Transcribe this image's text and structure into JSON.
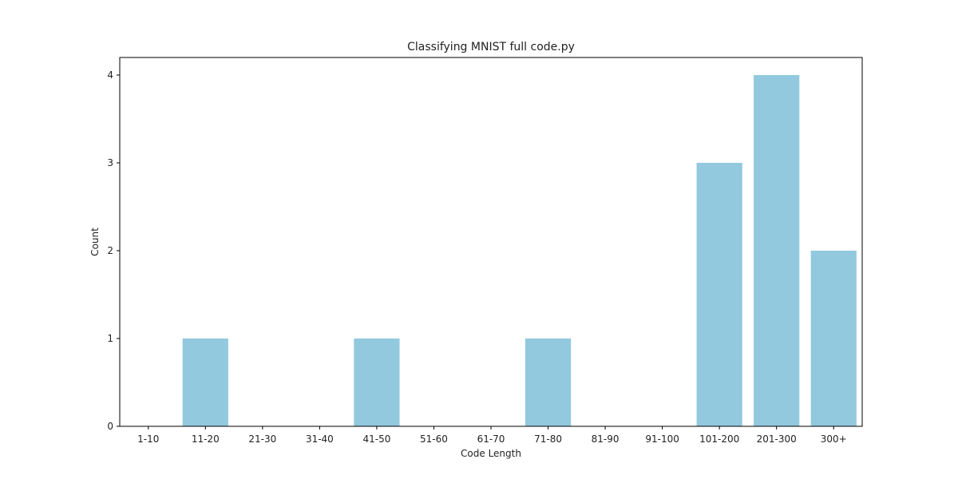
{
  "chart_data": {
    "type": "bar",
    "title": "Classifying MNIST full code.py",
    "xlabel": "Code Length",
    "ylabel": "Count",
    "categories": [
      "1-10",
      "11-20",
      "21-30",
      "31-40",
      "41-50",
      "51-60",
      "61-70",
      "71-80",
      "81-90",
      "91-100",
      "101-200",
      "201-300",
      "300+"
    ],
    "values": [
      0,
      1,
      0,
      0,
      1,
      0,
      0,
      1,
      0,
      0,
      3,
      4,
      2
    ],
    "ylim": [
      0,
      4.2
    ],
    "yticks": [
      0,
      1,
      2,
      3,
      4
    ],
    "bar_color": "#92c9de",
    "grid": false,
    "legend": false
  }
}
